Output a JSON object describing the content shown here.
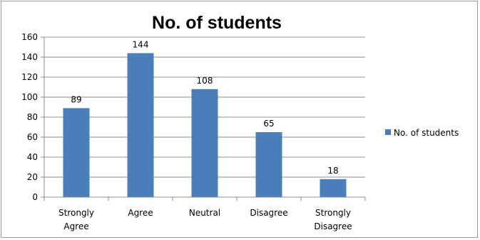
{
  "chart_data": {
    "type": "bar",
    "title": "No. of students",
    "categories": [
      "Strongly Agree",
      "Agree",
      "Neutral",
      "Disagree",
      "Strongly Disagree"
    ],
    "category_lines": [
      [
        "Strongly",
        "Agree"
      ],
      [
        "Agree"
      ],
      [
        "Neutral"
      ],
      [
        "Disagree"
      ],
      [
        "Strongly",
        "Disagree"
      ]
    ],
    "series": [
      {
        "name": "No. of students",
        "values": [
          89,
          144,
          108,
          65,
          18
        ],
        "color": "#4a7ebb"
      }
    ],
    "xlabel": "",
    "ylabel": "",
    "ylim": [
      0,
      160
    ],
    "yticks": [
      0,
      20,
      40,
      60,
      80,
      100,
      120,
      140,
      160
    ],
    "grid": true,
    "gridline_color": "#8c8c8c",
    "legend": {
      "position": "right",
      "entries": [
        "No. of students"
      ]
    }
  }
}
